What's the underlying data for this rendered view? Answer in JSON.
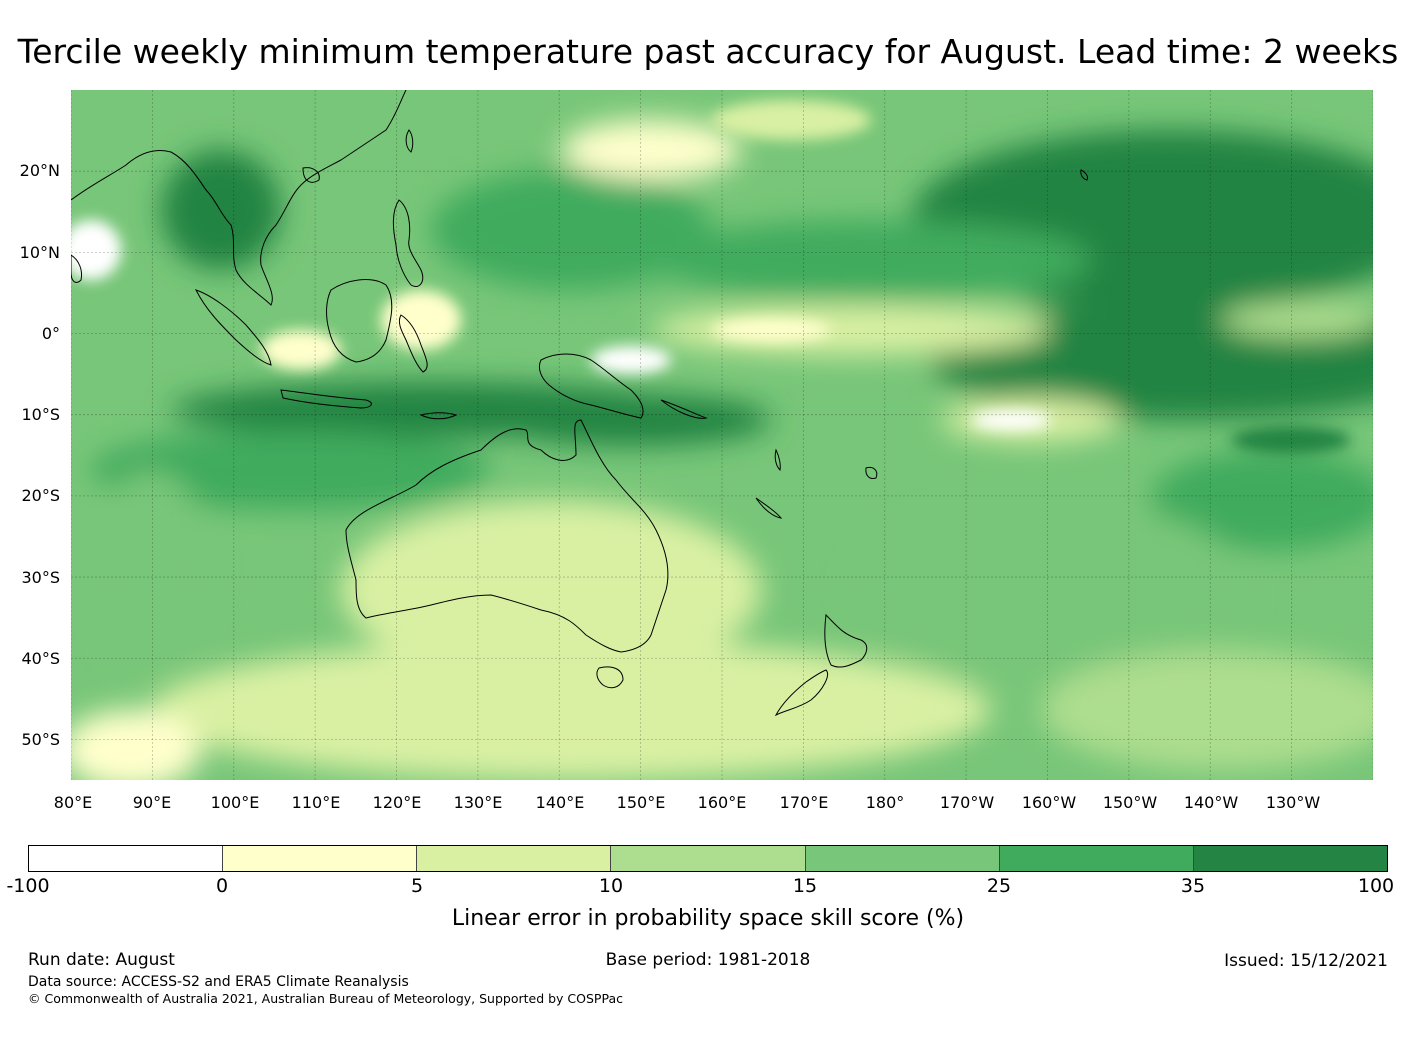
{
  "title": "Tercile weekly minimum temperature past accuracy for August. Lead time: 2 weeks",
  "map": {
    "lat_labels": [
      "20°N",
      "10°N",
      "0°",
      "10°S",
      "20°S",
      "30°S",
      "40°S",
      "50°S"
    ],
    "lon_labels": [
      "80°E",
      "90°E",
      "100°E",
      "110°E",
      "120°E",
      "130°E",
      "140°E",
      "150°E",
      "160°E",
      "170°E",
      "180°",
      "170°W",
      "160°W",
      "150°W",
      "140°W",
      "130°W"
    ],
    "lon_range": [
      80,
      240
    ],
    "lat_range": [
      -55,
      30
    ],
    "gridlines": true,
    "ocean_color": "#2e8b4b"
  },
  "colorbar": {
    "label": "Linear error in probability space skill score (%)",
    "ticks": [
      "-100",
      "0",
      "5",
      "10",
      "15",
      "25",
      "35",
      "100"
    ],
    "colors": [
      "#ffffff",
      "#ffffcc",
      "#d9f0a3",
      "#addd8e",
      "#78c679",
      "#41ab5d",
      "#238443"
    ]
  },
  "footer": {
    "run_date": "Run date: August",
    "base_period": "Base period: 1981-2018",
    "issued": "Issued: 15/12/2021",
    "data_source": "Data source: ACCESS-S2 and ERA5 Climate Reanalysis",
    "copyright": "© Commonwealth of Australia 2021, Australian Bureau of Meteorology, Supported by COSPPac"
  }
}
